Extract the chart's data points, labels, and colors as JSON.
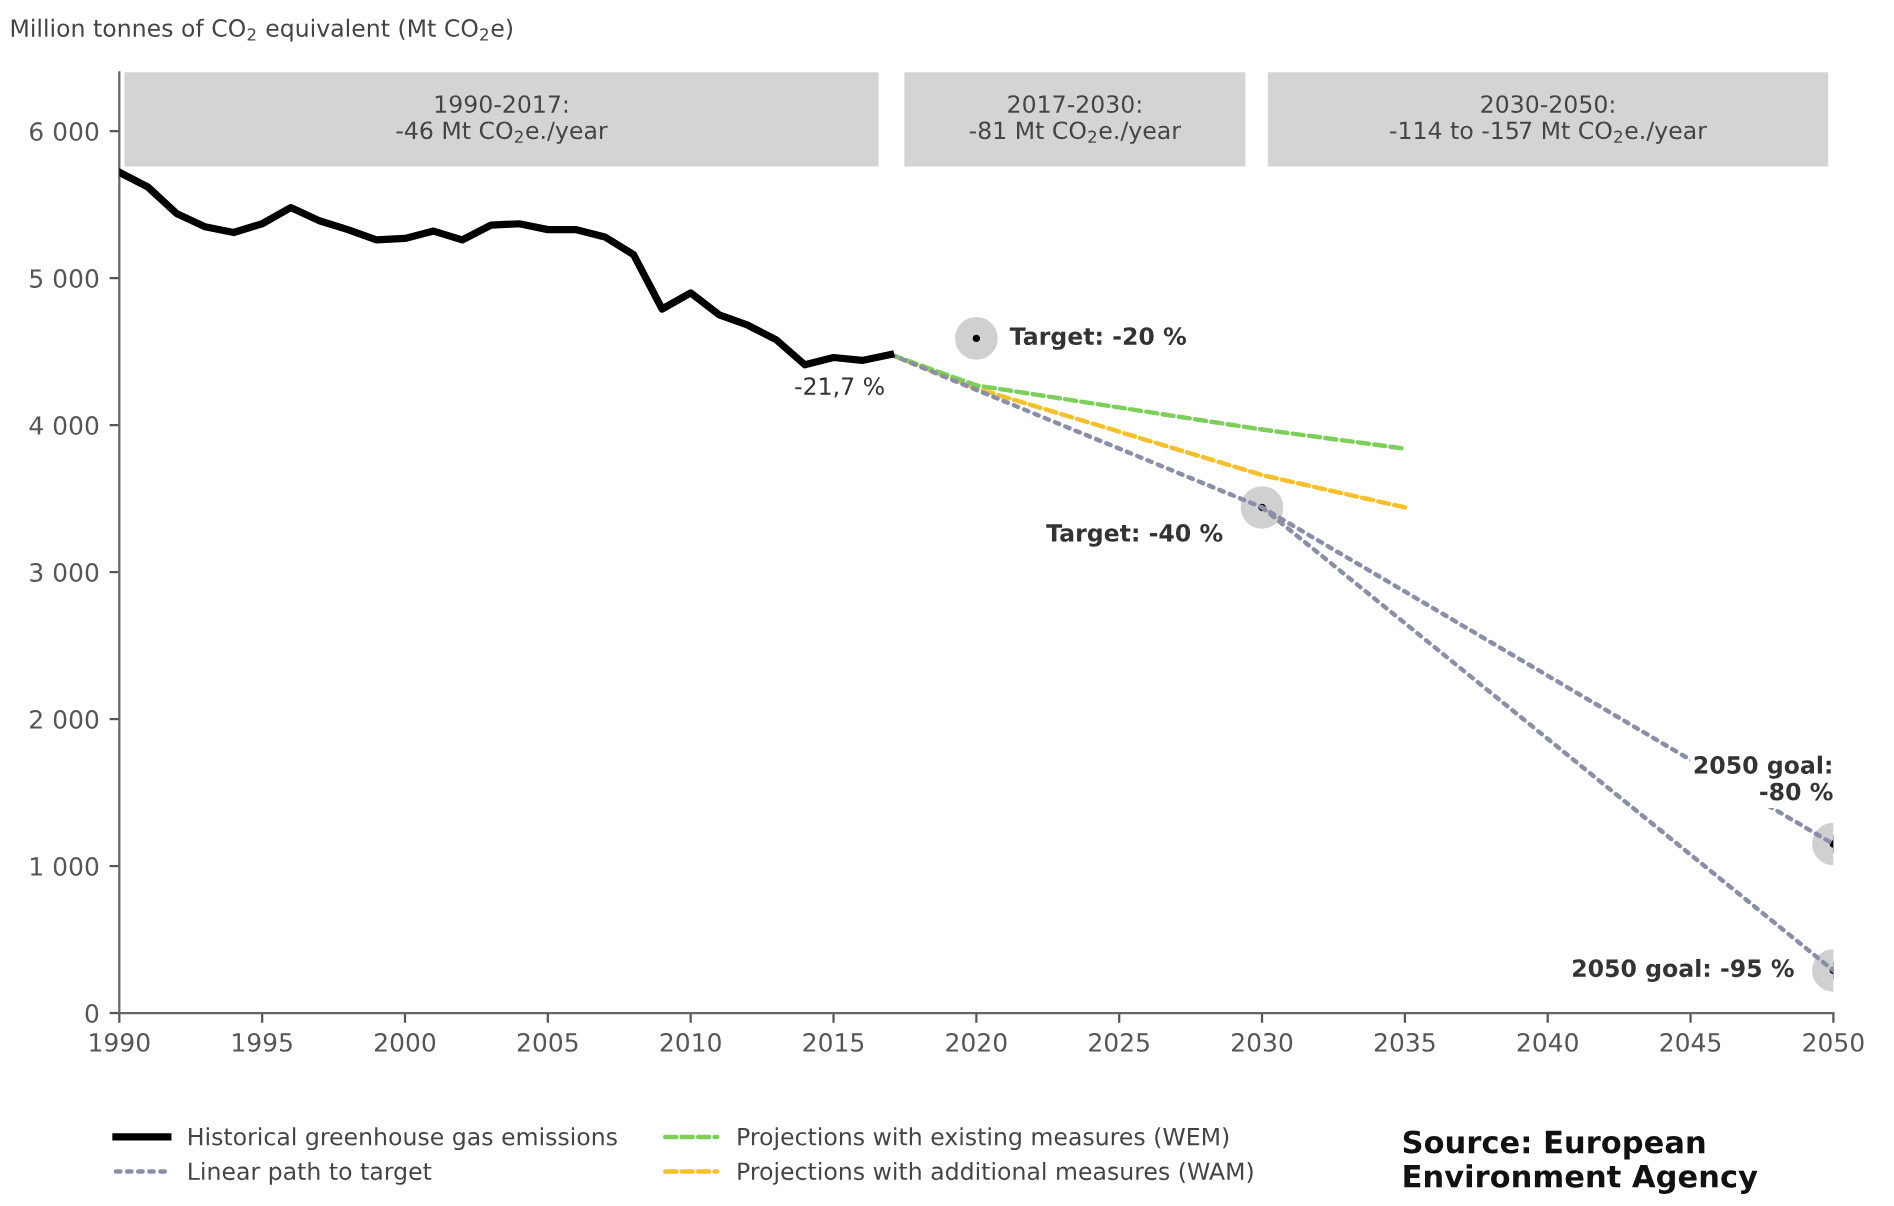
{
  "chart_data": {
    "type": "line",
    "ylabel": "Million tonnes of CO$_{2}$ equivalent (Mt CO$_{2}$e)",
    "xlim": [
      1990,
      2050
    ],
    "ylim": [
      0,
      6400
    ],
    "xticks": [
      1990,
      1995,
      2000,
      2005,
      2010,
      2015,
      2020,
      2025,
      2030,
      2035,
      2040,
      2045,
      2050
    ],
    "yticks": [
      {
        "value": 0,
        "label": "0"
      },
      {
        "value": 1000,
        "label": "1 000"
      },
      {
        "value": 2000,
        "label": "2 000"
      },
      {
        "value": 3000,
        "label": "3 000"
      },
      {
        "value": 4000,
        "label": "4 000"
      },
      {
        "value": 5000,
        "label": "5 000"
      },
      {
        "value": 6000,
        "label": "6 000"
      }
    ],
    "grid": false,
    "legend": "bottom",
    "series": [
      {
        "name": "Historical greenhouse gas emissions",
        "color": "#000000",
        "line_style": "solid",
        "marker": "none",
        "x": [
          1990,
          1991,
          1992,
          1993,
          1994,
          1995,
          1996,
          1997,
          1998,
          1999,
          2000,
          2001,
          2002,
          2003,
          2004,
          2005,
          2006,
          2007,
          2008,
          2009,
          2010,
          2011,
          2012,
          2013,
          2014,
          2015,
          2016,
          2017
        ],
        "values": [
          5720,
          5620,
          5440,
          5350,
          5310,
          5370,
          5480,
          5390,
          5330,
          5260,
          5270,
          5320,
          5260,
          5360,
          5370,
          5330,
          5330,
          5280,
          5160,
          4790,
          4900,
          4750,
          4680,
          4580,
          4410,
          4460,
          4440,
          4480
        ]
      },
      {
        "name": "Linear path to target",
        "color": "#8a8fa8",
        "line_style": "dotted",
        "marker": "none",
        "x": [
          2017,
          2030,
          2050
        ],
        "values": [
          4480,
          3440,
          1150
        ]
      },
      {
        "color": "#8a8fa8",
        "line_style": "dotted",
        "marker": "none",
        "x": [
          2030,
          2050
        ],
        "values": [
          3440,
          290
        ]
      },
      {
        "name": "Projections with existing measures (WEM)",
        "color": "#7ccf5b",
        "line_style": "dashed",
        "marker": "none",
        "x": [
          2017,
          2020,
          2030,
          2035
        ],
        "values": [
          4480,
          4270,
          3970,
          3840
        ]
      },
      {
        "name": "Projections with additional measures (WAM)",
        "color": "#f5c02a",
        "line_style": "dashed",
        "marker": "none",
        "x": [
          2017,
          2020,
          2030,
          2035
        ],
        "values": [
          4480,
          4250,
          3660,
          3440
        ]
      },
      {
        "type": "scatter",
        "color": "#000000",
        "marker": "circle",
        "x": [
          2020,
          2030,
          2050,
          2050
        ],
        "values": [
          4590,
          3440,
          1150,
          290
        ]
      }
    ],
    "annotations": [
      {
        "text": "-21,7 %",
        "x": 2017,
        "y": 4480
      },
      {
        "text": "Target: -20 %",
        "x": 2020,
        "y": 4590
      },
      {
        "text": "Target: -40 %",
        "x": 2030,
        "y": 3440
      },
      {
        "text": "2050 goal:\n-80 %",
        "x": 2050,
        "y": 1150
      },
      {
        "text": "2050 goal: -95 %",
        "x": 2050,
        "y": 290
      },
      "1990-2017:\n-46 Mt CO$_{2}$e./year",
      "2017-2030:\n-81 Mt CO$_{2}$e./year",
      "2030-2050:\n-114 to -157 Mt CO$_{2}$e./year",
      "Source: European\nEnvironment Agency"
    ]
  }
}
